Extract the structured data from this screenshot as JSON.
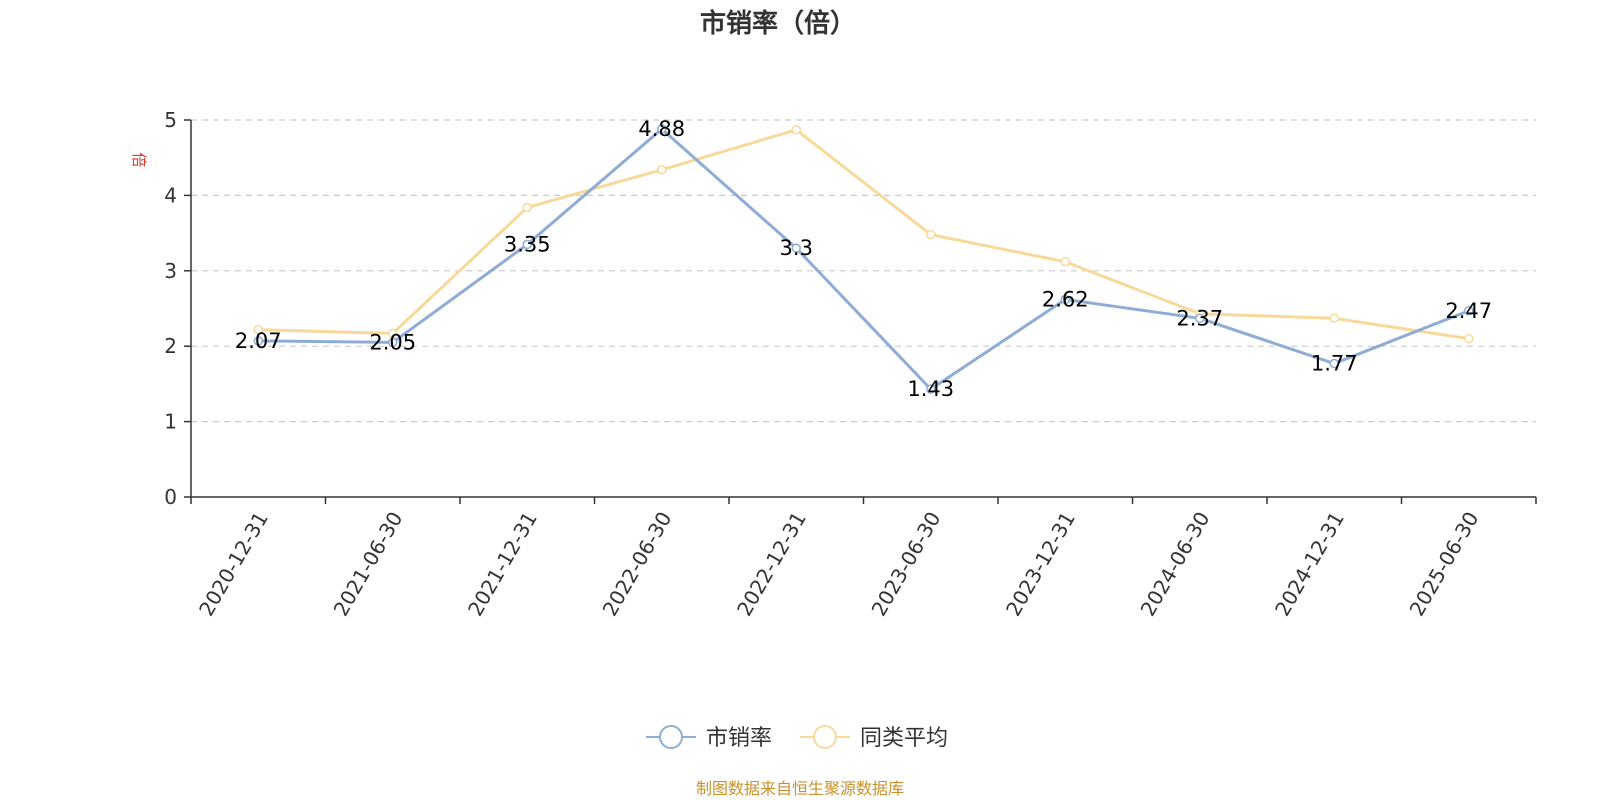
{
  "chart_data": {
    "type": "line",
    "title": "市销率（倍）",
    "ylabel": "倍",
    "xlabel": "",
    "ylim": [
      0,
      5
    ],
    "yticks": [
      0,
      1,
      2,
      3,
      4,
      5
    ],
    "grid": true,
    "legend_position": "bottom-center",
    "categories": [
      "2020-12-31",
      "2021-06-30",
      "2021-12-31",
      "2022-06-30",
      "2022-12-31",
      "2023-06-30",
      "2023-12-31",
      "2024-06-30",
      "2024-12-31",
      "2025-06-30"
    ],
    "series": [
      {
        "name": "市销率",
        "color": "#8eacd6",
        "values": [
          2.07,
          2.05,
          3.35,
          4.88,
          3.3,
          1.43,
          2.62,
          2.37,
          1.77,
          2.47
        ],
        "labels": [
          "2.07",
          "2.05",
          "3.35",
          "4.88",
          "3.3",
          "1.43",
          "2.62",
          "2.37",
          "1.77",
          "2.47"
        ]
      },
      {
        "name": "同类平均",
        "color": "#f8d99a",
        "values": [
          2.22,
          2.17,
          3.84,
          4.34,
          4.87,
          3.48,
          3.12,
          2.43,
          2.37,
          2.1
        ]
      }
    ]
  },
  "colors": {
    "unit_label": "#e0332b",
    "source_text": "#c8922e",
    "axis": "#333333",
    "grid": "#cccccc"
  },
  "source": "制图数据来自恒生聚源数据库"
}
